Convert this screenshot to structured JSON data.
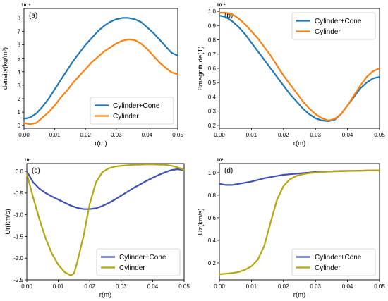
{
  "chart_data": [
    {
      "type": "line",
      "panel_label": "(a)",
      "multiplier": "10⁻⁶",
      "xlabel": "r(m)",
      "ylabel": "density(kg/m³)",
      "xlim": [
        0,
        0.05
      ],
      "ylim": [
        -0.2,
        8.7
      ],
      "xticks": [
        0,
        0.01,
        0.02,
        0.03,
        0.04,
        0.05
      ],
      "xtick_labels": [
        "0.00",
        "0.01",
        "0.02",
        "0.03",
        "0.04",
        "0.05"
      ],
      "yticks": [
        0,
        1,
        2,
        3,
        4,
        5,
        6,
        7,
        8
      ],
      "ytick_labels": [
        "0",
        "1",
        "2",
        "3",
        "4",
        "5",
        "6",
        "7",
        "8"
      ],
      "legend_position": "lower-right",
      "series": [
        {
          "name": "Cylinder+Cone",
          "color": "#1f77b4",
          "x": [
            0,
            0.002,
            0.004,
            0.006,
            0.008,
            0.01,
            0.012,
            0.014,
            0.016,
            0.018,
            0.02,
            0.022,
            0.024,
            0.026,
            0.028,
            0.03,
            0.032,
            0.034,
            0.036,
            0.038,
            0.04,
            0.042,
            0.044,
            0.046,
            0.048,
            0.05
          ],
          "y": [
            0.5,
            0.6,
            0.9,
            1.4,
            2.0,
            2.7,
            3.4,
            4.1,
            4.8,
            5.4,
            6.0,
            6.5,
            7.0,
            7.4,
            7.7,
            7.9,
            8.0,
            8.0,
            7.9,
            7.7,
            7.3,
            6.9,
            6.4,
            5.9,
            5.4,
            5.2
          ]
        },
        {
          "name": "Cylinder",
          "color": "#ff7f0e",
          "x": [
            0,
            0.002,
            0.004,
            0.006,
            0.008,
            0.01,
            0.012,
            0.014,
            0.016,
            0.018,
            0.02,
            0.022,
            0.024,
            0.026,
            0.028,
            0.03,
            0.032,
            0.034,
            0.036,
            0.038,
            0.04,
            0.042,
            0.044,
            0.046,
            0.048,
            0.05
          ],
          "y": [
            0.2,
            0.1,
            0.2,
            0.6,
            1.0,
            1.5,
            2.1,
            2.6,
            3.2,
            3.7,
            4.2,
            4.7,
            5.1,
            5.5,
            5.8,
            6.1,
            6.3,
            6.4,
            6.35,
            6.1,
            5.7,
            5.2,
            4.7,
            4.3,
            3.95,
            3.8
          ]
        }
      ]
    },
    {
      "type": "line",
      "panel_label": "(b)",
      "multiplier": "10⁻¹",
      "xlabel": "r(m)",
      "ylabel": "Bmagnitude(T)",
      "xlim": [
        0,
        0.05
      ],
      "ylim": [
        0.18,
        1.02
      ],
      "xticks": [
        0,
        0.01,
        0.02,
        0.03,
        0.04,
        0.05
      ],
      "xtick_labels": [
        "0.00",
        "0.01",
        "0.02",
        "0.03",
        "0.04",
        "0.05"
      ],
      "yticks": [
        0.2,
        0.3,
        0.4,
        0.5,
        0.6,
        0.7,
        0.8,
        0.9,
        1.0
      ],
      "ytick_labels": [
        "0.2",
        "0.3",
        "0.4",
        "0.5",
        "0.6",
        "0.7",
        "0.8",
        "0.9",
        "1.0"
      ],
      "legend_position": "top-right",
      "series": [
        {
          "name": "Cylinder+Cone",
          "color": "#1f77b4",
          "x": [
            0,
            0.002,
            0.004,
            0.006,
            0.008,
            0.01,
            0.012,
            0.014,
            0.016,
            0.018,
            0.02,
            0.022,
            0.024,
            0.026,
            0.028,
            0.03,
            0.032,
            0.034,
            0.036,
            0.038,
            0.04,
            0.042,
            0.044,
            0.046,
            0.048,
            0.05
          ],
          "y": [
            0.97,
            0.96,
            0.93,
            0.89,
            0.84,
            0.78,
            0.72,
            0.66,
            0.6,
            0.54,
            0.48,
            0.42,
            0.37,
            0.32,
            0.28,
            0.25,
            0.235,
            0.23,
            0.24,
            0.28,
            0.34,
            0.4,
            0.46,
            0.5,
            0.53,
            0.54
          ]
        },
        {
          "name": "Cylinder",
          "color": "#ff7f0e",
          "x": [
            0,
            0.002,
            0.004,
            0.006,
            0.008,
            0.01,
            0.012,
            0.014,
            0.016,
            0.018,
            0.02,
            0.022,
            0.024,
            0.026,
            0.028,
            0.03,
            0.032,
            0.034,
            0.036,
            0.038,
            0.04,
            0.042,
            0.044,
            0.046,
            0.048,
            0.05
          ],
          "y": [
            0.99,
            0.99,
            0.98,
            0.95,
            0.91,
            0.86,
            0.81,
            0.75,
            0.69,
            0.62,
            0.55,
            0.49,
            0.43,
            0.37,
            0.32,
            0.28,
            0.25,
            0.235,
            0.245,
            0.28,
            0.34,
            0.41,
            0.48,
            0.54,
            0.58,
            0.6
          ]
        }
      ]
    },
    {
      "type": "line",
      "panel_label": "(c)",
      "multiplier": "10¹",
      "xlabel": "r(m)",
      "ylabel": "Ur(km/s)",
      "xlim": [
        0,
        0.05
      ],
      "ylim": [
        -2.5,
        0.18
      ],
      "xticks": [
        0,
        0.01,
        0.02,
        0.03,
        0.04,
        0.05
      ],
      "xtick_labels": [
        "0.00",
        "0.01",
        "0.02",
        "0.03",
        "0.04",
        "0.05"
      ],
      "yticks": [
        -2.5,
        -2.0,
        -1.5,
        -1.0,
        -0.5,
        0.0
      ],
      "ytick_labels": [
        "-2.5",
        "-2.0",
        "-1.5",
        "-1.0",
        "-0.5",
        "0.0"
      ],
      "legend_position": "lower-right",
      "series": [
        {
          "name": "Cylinder+Cone",
          "color": "#3f51b5",
          "x": [
            0,
            0.002,
            0.004,
            0.006,
            0.008,
            0.01,
            0.012,
            0.014,
            0.016,
            0.018,
            0.02,
            0.022,
            0.024,
            0.026,
            0.028,
            0.03,
            0.032,
            0.034,
            0.036,
            0.038,
            0.04,
            0.042,
            0.044,
            0.046,
            0.048,
            0.05
          ],
          "y": [
            0.0,
            -0.25,
            -0.4,
            -0.5,
            -0.58,
            -0.65,
            -0.72,
            -0.79,
            -0.84,
            -0.87,
            -0.87,
            -0.85,
            -0.8,
            -0.73,
            -0.65,
            -0.56,
            -0.47,
            -0.38,
            -0.3,
            -0.22,
            -0.15,
            -0.08,
            -0.02,
            0.03,
            0.05,
            0.02
          ]
        },
        {
          "name": "Cylinder",
          "color": "#b5a60f",
          "x": [
            0,
            0.002,
            0.004,
            0.006,
            0.008,
            0.01,
            0.012,
            0.014,
            0.015,
            0.016,
            0.018,
            0.02,
            0.022,
            0.024,
            0.026,
            0.028,
            0.03,
            0.032,
            0.034,
            0.036,
            0.038,
            0.04,
            0.042,
            0.044,
            0.046,
            0.048,
            0.05
          ],
          "y": [
            -0.05,
            -0.6,
            -1.1,
            -1.55,
            -1.9,
            -2.15,
            -2.32,
            -2.4,
            -2.35,
            -2.1,
            -1.5,
            -0.75,
            -0.25,
            -0.02,
            0.07,
            0.11,
            0.13,
            0.14,
            0.15,
            0.155,
            0.16,
            0.16,
            0.155,
            0.15,
            0.13,
            0.09,
            0.03
          ]
        }
      ]
    },
    {
      "type": "line",
      "panel_label": "(d)",
      "multiplier": "10²",
      "xlabel": "r(m)",
      "ylabel": "Uz(km/s)",
      "xlim": [
        0,
        0.05
      ],
      "ylim": [
        0.05,
        1.08
      ],
      "xticks": [
        0,
        0.01,
        0.02,
        0.03,
        0.04,
        0.05
      ],
      "xtick_labels": [
        "0.00",
        "0.01",
        "0.02",
        "0.03",
        "0.04",
        "0.05"
      ],
      "yticks": [
        0.2,
        0.4,
        0.6,
        0.8,
        1.0
      ],
      "ytick_labels": [
        "0.2",
        "0.4",
        "0.6",
        "0.8",
        "1.0"
      ],
      "legend_position": "lower-right",
      "series": [
        {
          "name": "Cylinder+Cone",
          "color": "#3f51b5",
          "x": [
            0,
            0.002,
            0.004,
            0.006,
            0.008,
            0.01,
            0.012,
            0.014,
            0.016,
            0.018,
            0.02,
            0.022,
            0.024,
            0.026,
            0.028,
            0.03,
            0.032,
            0.034,
            0.036,
            0.038,
            0.04,
            0.042,
            0.044,
            0.046,
            0.048,
            0.05
          ],
          "y": [
            0.9,
            0.89,
            0.89,
            0.9,
            0.91,
            0.92,
            0.935,
            0.95,
            0.96,
            0.97,
            0.98,
            0.985,
            0.99,
            0.995,
            1.0,
            1.005,
            1.008,
            1.01,
            1.012,
            1.014,
            1.015,
            1.016,
            1.017,
            1.018,
            1.019,
            1.02
          ]
        },
        {
          "name": "Cylinder",
          "color": "#b5a60f",
          "x": [
            0,
            0.002,
            0.004,
            0.006,
            0.008,
            0.01,
            0.012,
            0.014,
            0.016,
            0.018,
            0.02,
            0.022,
            0.024,
            0.026,
            0.028,
            0.03,
            0.032,
            0.034,
            0.036,
            0.038,
            0.04,
            0.042,
            0.044,
            0.046,
            0.048,
            0.05
          ],
          "y": [
            0.1,
            0.105,
            0.11,
            0.12,
            0.14,
            0.17,
            0.23,
            0.35,
            0.56,
            0.76,
            0.88,
            0.94,
            0.97,
            0.985,
            0.995,
            1.0,
            1.005,
            1.008,
            1.01,
            1.012,
            1.014,
            1.015,
            1.016,
            1.018,
            1.019,
            1.02
          ]
        }
      ]
    }
  ]
}
